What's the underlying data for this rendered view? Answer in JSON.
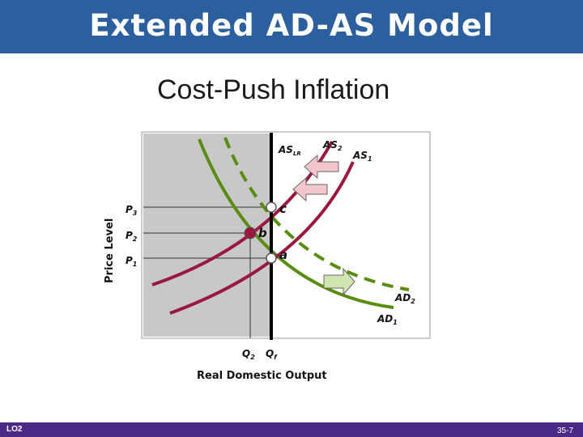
{
  "header": {
    "title": "Extended AD-AS Model"
  },
  "subtitle": "Cost-Push Inflation",
  "diagram": {
    "y_axis_label": "Price Level",
    "x_axis_label": "Real Domestic Output",
    "curves": {
      "as_lr": "AS",
      "as_lr_sub": "LR",
      "as2": "AS",
      "as2_sub": "2",
      "as1": "AS",
      "as1_sub": "1",
      "ad2": "AD",
      "ad2_sub": "2",
      "ad1": "AD",
      "ad1_sub": "1"
    },
    "price_labels": [
      {
        "main": "P",
        "sub": "3"
      },
      {
        "main": "P",
        "sub": "2"
      },
      {
        "main": "P",
        "sub": "1"
      }
    ],
    "quantity_labels": [
      {
        "main": "Q",
        "sub": "2"
      },
      {
        "main": "Q",
        "sub": "f"
      }
    ],
    "points": {
      "a": "a",
      "b": "b",
      "c": "c"
    },
    "colors": {
      "as": "#9a1840",
      "ad": "#5a8c12",
      "shade": "#c8c8c8",
      "arrow_pink": "#f2c6cc",
      "arrow_green": "#cfe6b0"
    }
  },
  "footer": {
    "left": "LO2",
    "right": "35-7"
  }
}
